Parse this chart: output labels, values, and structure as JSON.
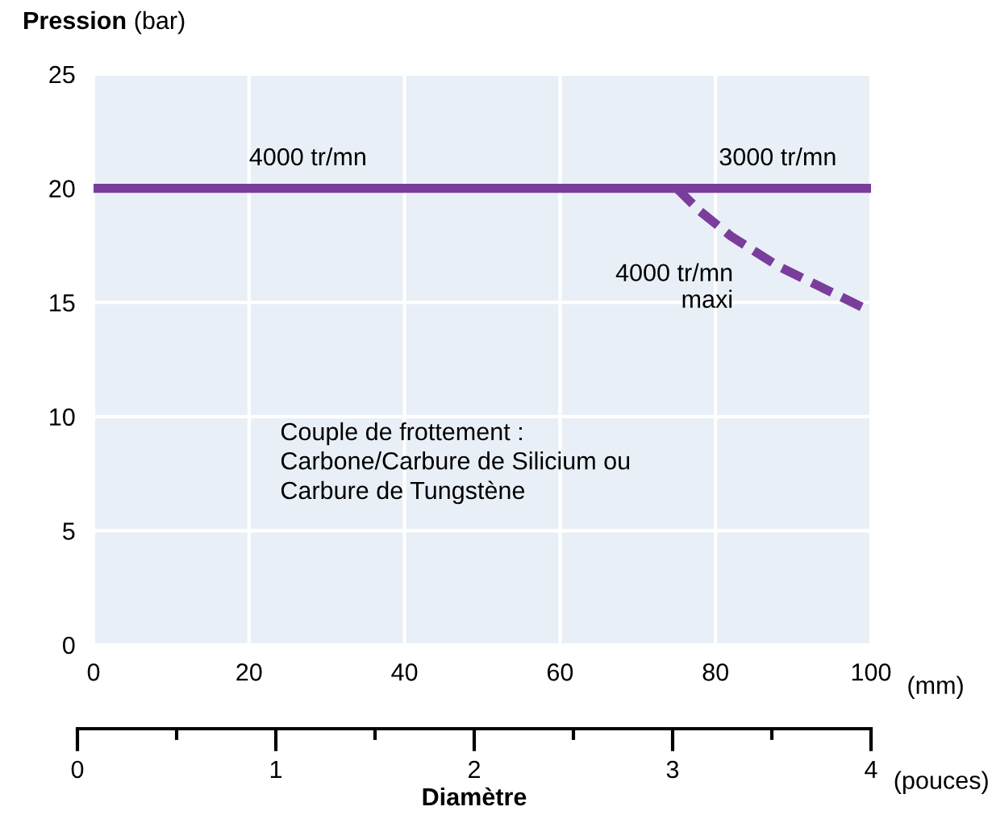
{
  "chart_data": {
    "type": "line",
    "ylabel": "Pression (bar)",
    "xlabel": "Diamètre",
    "xlim": [
      0,
      100
    ],
    "xticks": [
      0,
      20,
      40,
      60,
      80,
      100
    ],
    "ylim": [
      0,
      25
    ],
    "yticks": [
      0,
      5,
      10,
      15,
      20,
      25
    ],
    "x2lim": [
      0,
      4
    ],
    "x2ticks": [
      0,
      1,
      2,
      3,
      4
    ],
    "grid": true,
    "series": [
      {
        "color": "#7a3d9c",
        "line_style": "solid",
        "x": [
          0,
          100
        ],
        "values": [
          20,
          20
        ]
      },
      {
        "color": "#7a3d9c",
        "line_style": "dashed",
        "x": [
          75,
          78,
          82,
          88,
          94,
          100
        ],
        "values": [
          20,
          19,
          17.9,
          16.6,
          15.6,
          14.6
        ]
      }
    ],
    "annotations": [
      {
        "text": "4000 tr/mn",
        "x": 20,
        "y": 20
      },
      {
        "text": "3000 tr/mn",
        "x": 88,
        "y": 20
      },
      {
        "text": "4000 tr/mn\nmaxi",
        "x": 84,
        "y": 17.5
      },
      "Couple de frottement :\nCarbone/Carbure de Silicium ou\nCarbure de Tungstène",
      "(mm)",
      "(pouces)"
    ]
  }
}
